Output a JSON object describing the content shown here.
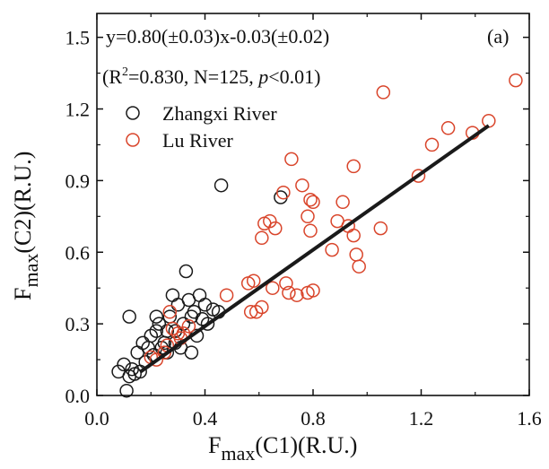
{
  "chart_data": {
    "type": "scatter",
    "panel_label": "(a)",
    "xlabel": {
      "main": "F",
      "sub": "max",
      "rest": "(C1)(R.U.)"
    },
    "ylabel": {
      "main": "F",
      "sub": "max",
      "rest": "(C2)(R.U.)"
    },
    "xlim": [
      0.0,
      1.6
    ],
    "ylim": [
      0.0,
      1.6
    ],
    "xticks": [
      0.0,
      0.4,
      0.8,
      1.2,
      1.6
    ],
    "xtick_labels": [
      "0.0",
      "0.4",
      "0.8",
      "1.2",
      "1.6"
    ],
    "yticks": [
      0.0,
      0.3,
      0.6,
      0.9,
      1.2,
      1.5
    ],
    "ytick_labels": [
      "0.0",
      "0.3",
      "0.6",
      "0.9",
      "1.2",
      "1.5"
    ],
    "grid": false,
    "legend_position": "top-left",
    "equation": {
      "line1": "y=0.80(±0.03)x-0.03(±0.02)",
      "r_open": "(R",
      "r_sup": "2",
      "r_mid": "=0.830, N=125, ",
      "p": "p",
      "r_end": "<0.01)"
    },
    "fit_line": {
      "slope": 0.8,
      "intercept": -0.03,
      "x_range": [
        0.16,
        1.45
      ],
      "color": "#1a1a1a"
    },
    "series": [
      {
        "name": "Zhangxi River",
        "color": "#1a1a1a",
        "marker": "open-circle",
        "points": [
          [
            0.08,
            0.1
          ],
          [
            0.1,
            0.13
          ],
          [
            0.11,
            0.02
          ],
          [
            0.12,
            0.33
          ],
          [
            0.12,
            0.08
          ],
          [
            0.13,
            0.11
          ],
          [
            0.14,
            0.09
          ],
          [
            0.15,
            0.18
          ],
          [
            0.16,
            0.1
          ],
          [
            0.17,
            0.22
          ],
          [
            0.18,
            0.14
          ],
          [
            0.19,
            0.2
          ],
          [
            0.2,
            0.25
          ],
          [
            0.21,
            0.17
          ],
          [
            0.22,
            0.27
          ],
          [
            0.23,
            0.3
          ],
          [
            0.24,
            0.2
          ],
          [
            0.25,
            0.22
          ],
          [
            0.26,
            0.27
          ],
          [
            0.27,
            0.33
          ],
          [
            0.28,
            0.42
          ],
          [
            0.29,
            0.22
          ],
          [
            0.3,
            0.38
          ],
          [
            0.31,
            0.2
          ],
          [
            0.32,
            0.3
          ],
          [
            0.33,
            0.52
          ],
          [
            0.34,
            0.4
          ],
          [
            0.35,
            0.18
          ],
          [
            0.36,
            0.35
          ],
          [
            0.37,
            0.25
          ],
          [
            0.38,
            0.42
          ],
          [
            0.39,
            0.32
          ],
          [
            0.4,
            0.38
          ],
          [
            0.41,
            0.3
          ],
          [
            0.43,
            0.36
          ],
          [
            0.45,
            0.35
          ],
          [
            0.46,
            0.88
          ],
          [
            0.68,
            0.83
          ],
          [
            0.29,
            0.27
          ],
          [
            0.35,
            0.33
          ],
          [
            0.22,
            0.33
          ],
          [
            0.26,
            0.18
          ]
        ]
      },
      {
        "name": "Lu River",
        "color": "#d9452b",
        "marker": "open-circle",
        "points": [
          [
            0.2,
            0.16
          ],
          [
            0.22,
            0.15
          ],
          [
            0.25,
            0.18
          ],
          [
            0.26,
            0.21
          ],
          [
            0.27,
            0.35
          ],
          [
            0.28,
            0.28
          ],
          [
            0.3,
            0.26
          ],
          [
            0.31,
            0.24
          ],
          [
            0.32,
            0.26
          ],
          [
            0.34,
            0.29
          ],
          [
            0.48,
            0.42
          ],
          [
            0.56,
            0.47
          ],
          [
            0.57,
            0.35
          ],
          [
            0.58,
            0.48
          ],
          [
            0.59,
            0.35
          ],
          [
            0.61,
            0.37
          ],
          [
            0.61,
            0.66
          ],
          [
            0.62,
            0.72
          ],
          [
            0.64,
            0.73
          ],
          [
            0.65,
            0.45
          ],
          [
            0.66,
            0.7
          ],
          [
            0.69,
            0.85
          ],
          [
            0.7,
            0.47
          ],
          [
            0.71,
            0.43
          ],
          [
            0.72,
            0.99
          ],
          [
            0.74,
            0.42
          ],
          [
            0.76,
            0.88
          ],
          [
            0.78,
            0.43
          ],
          [
            0.78,
            0.75
          ],
          [
            0.79,
            0.69
          ],
          [
            0.79,
            0.82
          ],
          [
            0.8,
            0.44
          ],
          [
            0.8,
            0.81
          ],
          [
            0.87,
            0.61
          ],
          [
            0.89,
            0.73
          ],
          [
            0.91,
            0.81
          ],
          [
            0.93,
            0.71
          ],
          [
            0.95,
            0.96
          ],
          [
            0.95,
            0.67
          ],
          [
            0.96,
            0.59
          ],
          [
            0.97,
            0.54
          ],
          [
            1.05,
            0.7
          ],
          [
            1.06,
            1.27
          ],
          [
            1.19,
            0.92
          ],
          [
            1.24,
            1.05
          ],
          [
            1.3,
            1.12
          ],
          [
            1.39,
            1.1
          ],
          [
            1.45,
            1.15
          ],
          [
            1.55,
            1.32
          ]
        ]
      }
    ]
  }
}
